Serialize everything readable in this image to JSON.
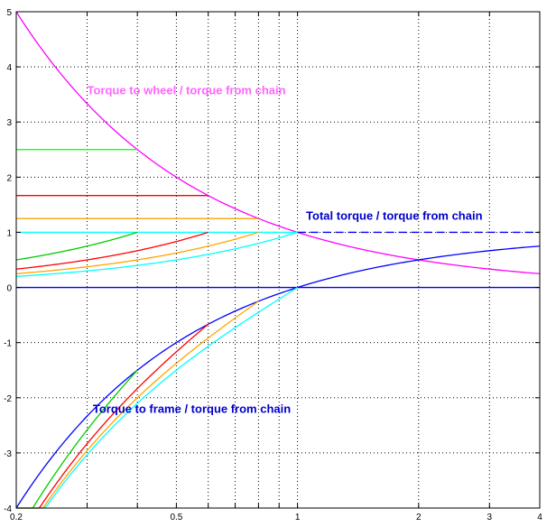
{
  "chart_data": {
    "type": "line",
    "x_scale": "log",
    "xlim": [
      0.2,
      4
    ],
    "ylim": [
      -4,
      5
    ],
    "grid": true,
    "grid_style": "dotted",
    "x_ticks": [
      {
        "v": 0.2,
        "label": "0.2"
      },
      {
        "v": 0.3,
        "label": ""
      },
      {
        "v": 0.4,
        "label": ""
      },
      {
        "v": 0.5,
        "label": "0.5"
      },
      {
        "v": 0.6,
        "label": ""
      },
      {
        "v": 0.7,
        "label": ""
      },
      {
        "v": 0.8,
        "label": ""
      },
      {
        "v": 0.9,
        "label": ""
      },
      {
        "v": 1,
        "label": "1"
      },
      {
        "v": 2,
        "label": "2"
      },
      {
        "v": 3,
        "label": "3"
      },
      {
        "v": 4,
        "label": "4"
      }
    ],
    "y_ticks": [
      {
        "v": -4,
        "label": "-4"
      },
      {
        "v": -3,
        "label": "-3"
      },
      {
        "v": -2,
        "label": "-2"
      },
      {
        "v": -1,
        "label": "-1"
      },
      {
        "v": 0,
        "label": "0"
      },
      {
        "v": 1,
        "label": "1"
      },
      {
        "v": 2,
        "label": "2"
      },
      {
        "v": 3,
        "label": "3"
      },
      {
        "v": 4,
        "label": "4"
      },
      {
        "v": 5,
        "label": "5"
      }
    ],
    "series": [
      {
        "kind": "curve",
        "fn": "wheel",
        "color": "#ff00ff",
        "xrange": [
          0.2,
          4
        ]
      },
      {
        "kind": "curve",
        "fn": "frame",
        "color": "#0000ff",
        "xrange": [
          0.2,
          4
        ]
      },
      {
        "kind": "hline",
        "y": 0,
        "color": "#0000ff",
        "xrange": [
          0.2,
          4
        ]
      },
      {
        "kind": "hline",
        "y": 1,
        "color": "#00ffff",
        "xrange": [
          0.2,
          1
        ]
      },
      {
        "kind": "hline",
        "y": 1,
        "color": "#0000ff",
        "dashed": true,
        "xrange": [
          1,
          4
        ]
      },
      {
        "kind": "hline",
        "y": 2.5,
        "color": "#00ff00",
        "xrange": [
          0.2,
          0.4
        ]
      },
      {
        "kind": "hline",
        "y": 1.667,
        "color": "#ff0000",
        "xrange": [
          0.2,
          0.6
        ]
      },
      {
        "kind": "hline",
        "y": 1.25,
        "color": "#ffa500",
        "xrange": [
          0.2,
          0.8
        ]
      },
      {
        "kind": "curve",
        "fn": "upper",
        "k": 0.4,
        "color": "#00cc00",
        "xrange": [
          0.2,
          0.4
        ]
      },
      {
        "kind": "curve",
        "fn": "upper",
        "k": 0.6,
        "color": "#ff0000",
        "xrange": [
          0.2,
          0.6
        ]
      },
      {
        "kind": "curve",
        "fn": "upper",
        "k": 0.8,
        "color": "#ffa500",
        "xrange": [
          0.2,
          0.8
        ]
      },
      {
        "kind": "curve",
        "fn": "upper",
        "k": 1.0,
        "color": "#00ffff",
        "xrange": [
          0.2,
          1.0
        ]
      },
      {
        "kind": "curve",
        "fn": "lower",
        "k": 0.4,
        "color": "#00cc00",
        "xrange": [
          0.2,
          0.4
        ]
      },
      {
        "kind": "curve",
        "fn": "lower",
        "k": 0.6,
        "color": "#ff0000",
        "xrange": [
          0.2,
          0.6
        ]
      },
      {
        "kind": "curve",
        "fn": "lower",
        "k": 0.8,
        "color": "#ffa500",
        "xrange": [
          0.2,
          0.8
        ]
      },
      {
        "kind": "curve",
        "fn": "lower",
        "k": 1.0,
        "color": "#00ffff",
        "xrange": [
          0.2,
          1.0
        ]
      }
    ],
    "annotations": [
      {
        "text": "Torque to wheel / torque from chain",
        "color": "#ff66ff",
        "x": 0.3,
        "y": 3.5
      },
      {
        "text": "Total torque / torque from chain",
        "color": "#0000cc",
        "x": 1.05,
        "y": 1.23
      },
      {
        "text": "Torque to frame / torque from chain",
        "color": "#0000cc",
        "x": 0.31,
        "y": -2.27
      }
    ]
  }
}
